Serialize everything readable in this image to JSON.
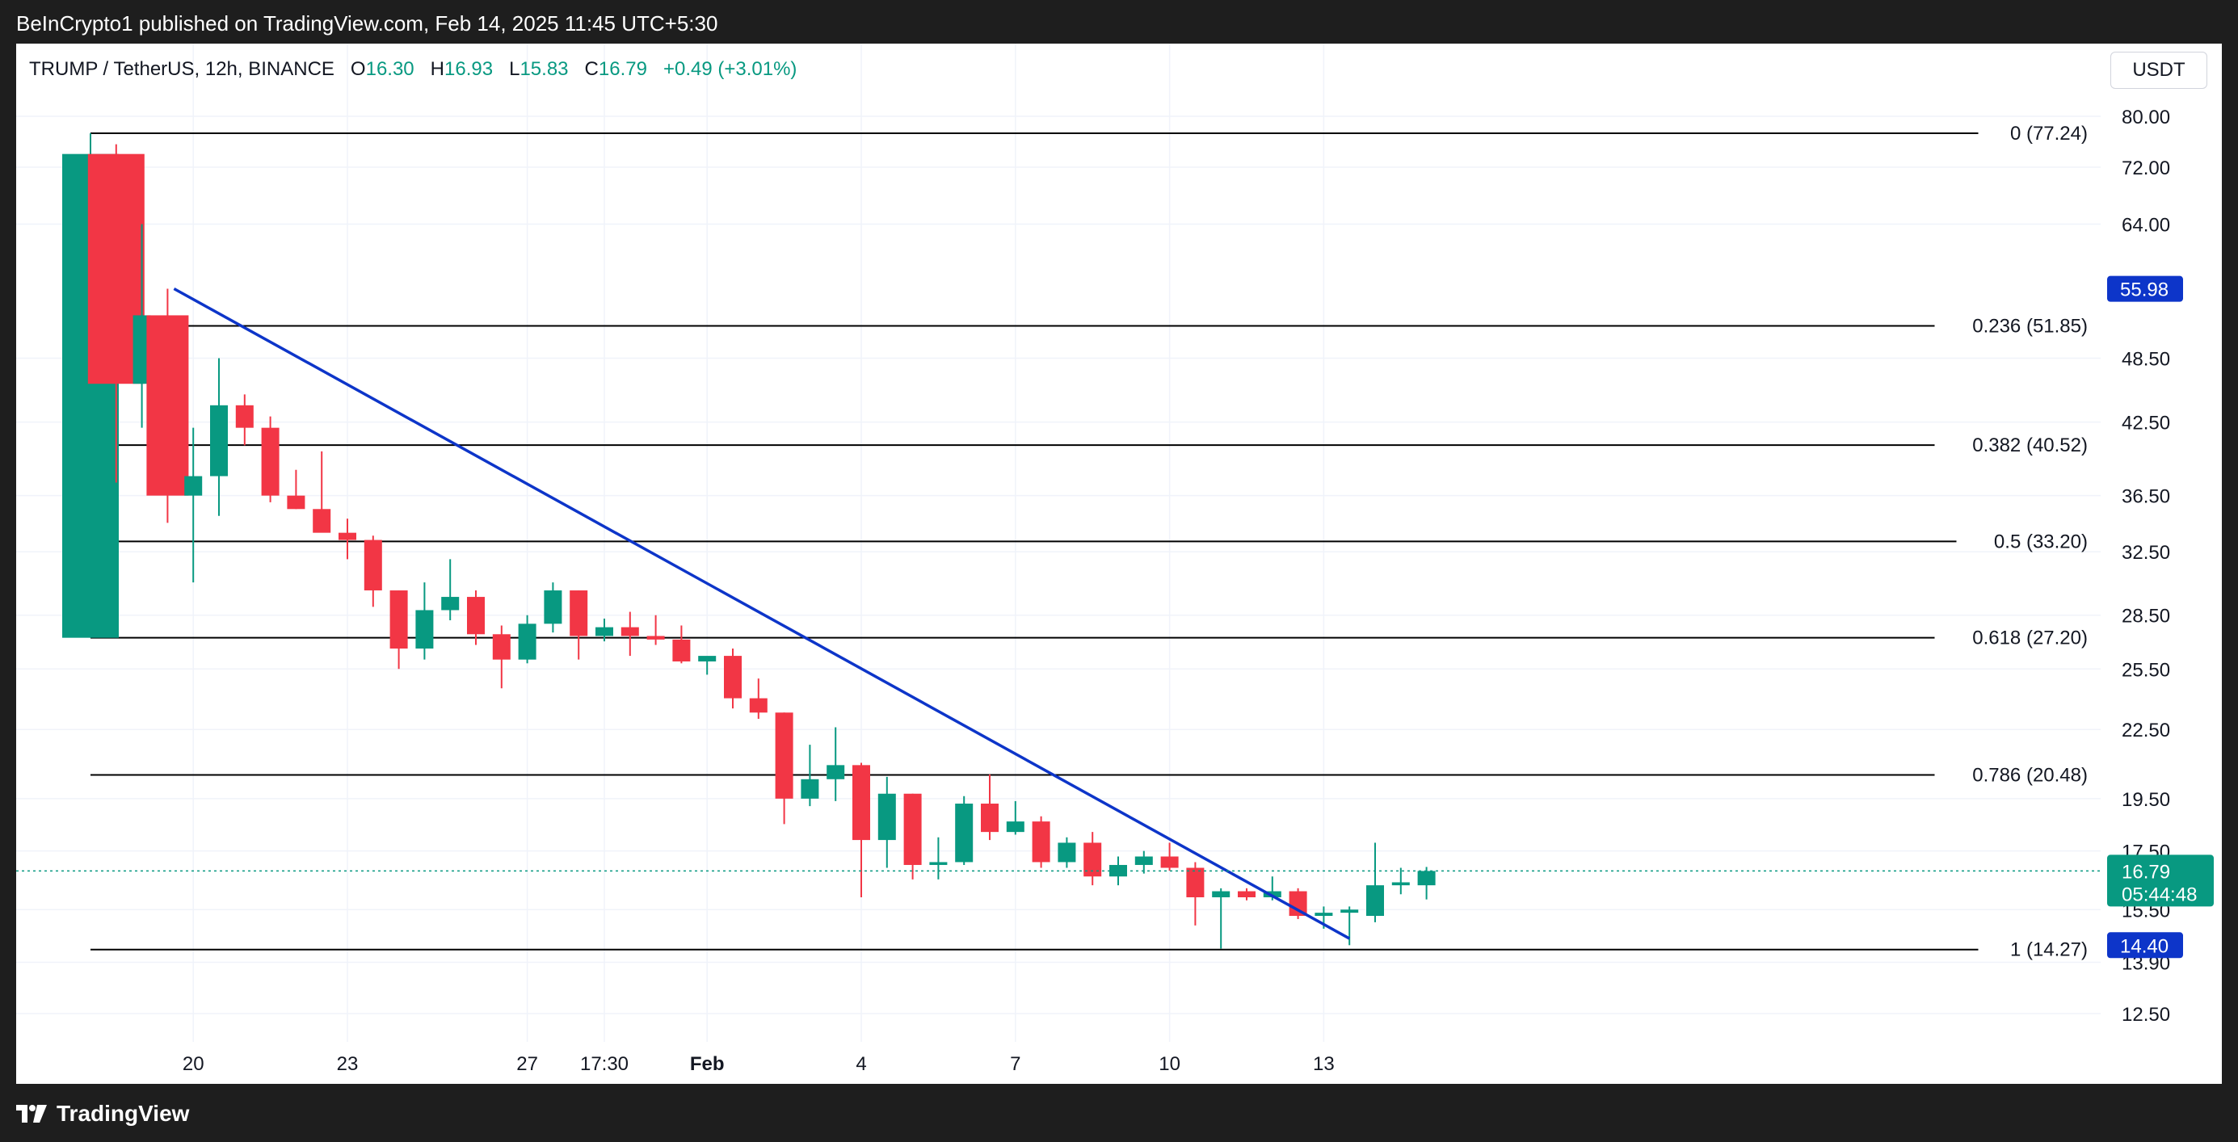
{
  "header": {
    "published_by": "BeInCrypto1 published on TradingView.com, Feb 14, 2025 11:45 UTC+5:30"
  },
  "legend": {
    "symbol": "TRUMP / TetherUS, 12h, BINANCE",
    "open_label": "O",
    "open": "16.30",
    "high_label": "H",
    "high": "16.93",
    "low_label": "L",
    "low": "15.83",
    "close_label": "C",
    "close": "16.79",
    "change": "+0.49 (+3.01%)"
  },
  "currency_button": "USDT",
  "footer": {
    "brand": "TradingView"
  },
  "colors": {
    "up": "#089981",
    "down": "#f23645",
    "trendline": "#0d35c9",
    "price_tag_blue": "#0d35c9",
    "price_tag_green": "#089981",
    "fib_line": "#000000",
    "grid": "#f0f3fa"
  },
  "chart_data": {
    "type": "candlestick",
    "interval": "12h",
    "title": "TRUMP / TetherUS, 12h, BINANCE",
    "y_scale": "log",
    "ylim": [
      11.5,
      86
    ],
    "y_ticks": [
      "80.00",
      "72.00",
      "64.00",
      "48.50",
      "42.50",
      "36.50",
      "32.50",
      "28.50",
      "25.50",
      "22.50",
      "19.50",
      "17.50",
      "15.50",
      "13.90",
      "12.50"
    ],
    "x_ticks": [
      {
        "label": "20",
        "index": 4
      },
      {
        "label": "23",
        "index": 10
      },
      {
        "label": "27",
        "index": 17
      },
      {
        "label": "17:30",
        "index": 20
      },
      {
        "label": "Feb",
        "index": 24
      },
      {
        "label": "4",
        "index": 30
      },
      {
        "label": "7",
        "index": 36
      },
      {
        "label": "10",
        "index": 42
      },
      {
        "label": "13",
        "index": 48
      }
    ],
    "candles": [
      {
        "o": 27.2,
        "h": 77.24,
        "l": 27.2,
        "c": 74.0
      },
      {
        "o": 74.0,
        "h": 75.5,
        "l": 37.5,
        "c": 46.0
      },
      {
        "o": 46.0,
        "h": 64.0,
        "l": 42.0,
        "c": 53.0
      },
      {
        "o": 53.0,
        "h": 56.0,
        "l": 34.5,
        "c": 36.5
      },
      {
        "o": 36.5,
        "h": 42.0,
        "l": 30.5,
        "c": 38.0
      },
      {
        "o": 38.0,
        "h": 48.5,
        "l": 35.0,
        "c": 44.0
      },
      {
        "o": 44.0,
        "h": 45.0,
        "l": 40.5,
        "c": 42.0
      },
      {
        "o": 42.0,
        "h": 43.0,
        "l": 36.0,
        "c": 36.5
      },
      {
        "o": 36.5,
        "h": 38.5,
        "l": 35.5,
        "c": 35.5
      },
      {
        "o": 35.5,
        "h": 40.0,
        "l": 34.0,
        "c": 33.8
      },
      {
        "o": 33.8,
        "h": 34.8,
        "l": 32.0,
        "c": 33.3
      },
      {
        "o": 33.3,
        "h": 33.6,
        "l": 29.0,
        "c": 30.0
      },
      {
        "o": 30.0,
        "h": 30.0,
        "l": 25.5,
        "c": 26.6
      },
      {
        "o": 26.6,
        "h": 30.5,
        "l": 26.0,
        "c": 28.8
      },
      {
        "o": 28.8,
        "h": 32.0,
        "l": 28.2,
        "c": 29.6
      },
      {
        "o": 29.6,
        "h": 30.0,
        "l": 26.8,
        "c": 27.4
      },
      {
        "o": 27.4,
        "h": 27.9,
        "l": 24.5,
        "c": 26.0
      },
      {
        "o": 26.0,
        "h": 28.5,
        "l": 25.8,
        "c": 28.0
      },
      {
        "o": 28.0,
        "h": 30.5,
        "l": 27.5,
        "c": 30.0
      },
      {
        "o": 30.0,
        "h": 30.0,
        "l": 26.0,
        "c": 27.3
      },
      {
        "o": 27.3,
        "h": 28.3,
        "l": 27.0,
        "c": 27.8
      },
      {
        "o": 27.8,
        "h": 28.7,
        "l": 26.2,
        "c": 27.3
      },
      {
        "o": 27.3,
        "h": 28.5,
        "l": 26.8,
        "c": 27.1
      },
      {
        "o": 27.1,
        "h": 27.9,
        "l": 25.8,
        "c": 25.9
      },
      {
        "o": 25.9,
        "h": 26.1,
        "l": 25.2,
        "c": 26.2
      },
      {
        "o": 26.2,
        "h": 26.6,
        "l": 23.5,
        "c": 24.0
      },
      {
        "o": 24.0,
        "h": 25.0,
        "l": 23.0,
        "c": 23.3
      },
      {
        "o": 23.3,
        "h": 23.3,
        "l": 18.5,
        "c": 19.5
      },
      {
        "o": 19.5,
        "h": 21.8,
        "l": 19.2,
        "c": 20.3
      },
      {
        "o": 20.3,
        "h": 22.6,
        "l": 19.4,
        "c": 20.9
      },
      {
        "o": 20.9,
        "h": 21.0,
        "l": 15.9,
        "c": 17.9
      },
      {
        "o": 17.9,
        "h": 20.4,
        "l": 16.9,
        "c": 19.7
      },
      {
        "o": 19.7,
        "h": 19.7,
        "l": 16.5,
        "c": 17.0
      },
      {
        "o": 17.0,
        "h": 18.0,
        "l": 16.5,
        "c": 17.1
      },
      {
        "o": 17.1,
        "h": 19.6,
        "l": 17.0,
        "c": 19.3
      },
      {
        "o": 19.3,
        "h": 20.5,
        "l": 17.9,
        "c": 18.2
      },
      {
        "o": 18.2,
        "h": 19.4,
        "l": 18.1,
        "c": 18.6
      },
      {
        "o": 18.6,
        "h": 18.8,
        "l": 16.9,
        "c": 17.1
      },
      {
        "o": 17.1,
        "h": 18.0,
        "l": 16.9,
        "c": 17.8
      },
      {
        "o": 17.8,
        "h": 18.2,
        "l": 16.3,
        "c": 16.6
      },
      {
        "o": 16.6,
        "h": 17.3,
        "l": 16.3,
        "c": 17.0
      },
      {
        "o": 17.0,
        "h": 17.5,
        "l": 16.7,
        "c": 17.3
      },
      {
        "o": 17.3,
        "h": 17.8,
        "l": 16.8,
        "c": 16.9
      },
      {
        "o": 16.9,
        "h": 17.1,
        "l": 15.0,
        "c": 15.9
      },
      {
        "o": 15.9,
        "h": 16.2,
        "l": 14.3,
        "c": 16.1
      },
      {
        "o": 16.1,
        "h": 16.2,
        "l": 15.8,
        "c": 15.9
      },
      {
        "o": 15.9,
        "h": 16.6,
        "l": 15.8,
        "c": 16.1
      },
      {
        "o": 16.1,
        "h": 16.2,
        "l": 15.2,
        "c": 15.3
      },
      {
        "o": 15.3,
        "h": 15.6,
        "l": 14.9,
        "c": 15.4
      },
      {
        "o": 15.4,
        "h": 15.6,
        "l": 14.4,
        "c": 15.5
      },
      {
        "o": 15.3,
        "h": 17.8,
        "l": 15.1,
        "c": 16.3
      },
      {
        "o": 16.3,
        "h": 16.9,
        "l": 16.0,
        "c": 16.4
      },
      {
        "o": 16.3,
        "h": 16.93,
        "l": 15.83,
        "c": 16.79
      }
    ],
    "fib_levels": [
      {
        "ratio": "0",
        "value": 77.24,
        "label": "0 (77.24)"
      },
      {
        "ratio": "0.236",
        "value": 51.85,
        "label": "0.236 (51.85)"
      },
      {
        "ratio": "0.382",
        "value": 40.52,
        "label": "0.382 (40.52)"
      },
      {
        "ratio": "0.5",
        "value": 33.2,
        "label": "0.5 (33.20)"
      },
      {
        "ratio": "0.618",
        "value": 27.2,
        "label": "0.618 (27.20)"
      },
      {
        "ratio": "0.786",
        "value": 20.48,
        "label": "0.786 (20.48)"
      },
      {
        "ratio": "1",
        "value": 14.27,
        "label": "1 (14.27)"
      }
    ],
    "trendline": {
      "start": {
        "index": 3,
        "value": 56.0
      },
      "end": {
        "index": 49,
        "value": 14.6
      }
    },
    "price_tags": [
      {
        "value": 55.98,
        "label": "55.98",
        "style": "blue"
      },
      {
        "value": 16.79,
        "label": "16.79",
        "countdown": "05:44:48",
        "style": "green"
      },
      {
        "value": 14.4,
        "label": "14.40",
        "style": "blue"
      }
    ],
    "current_price": 16.79
  }
}
